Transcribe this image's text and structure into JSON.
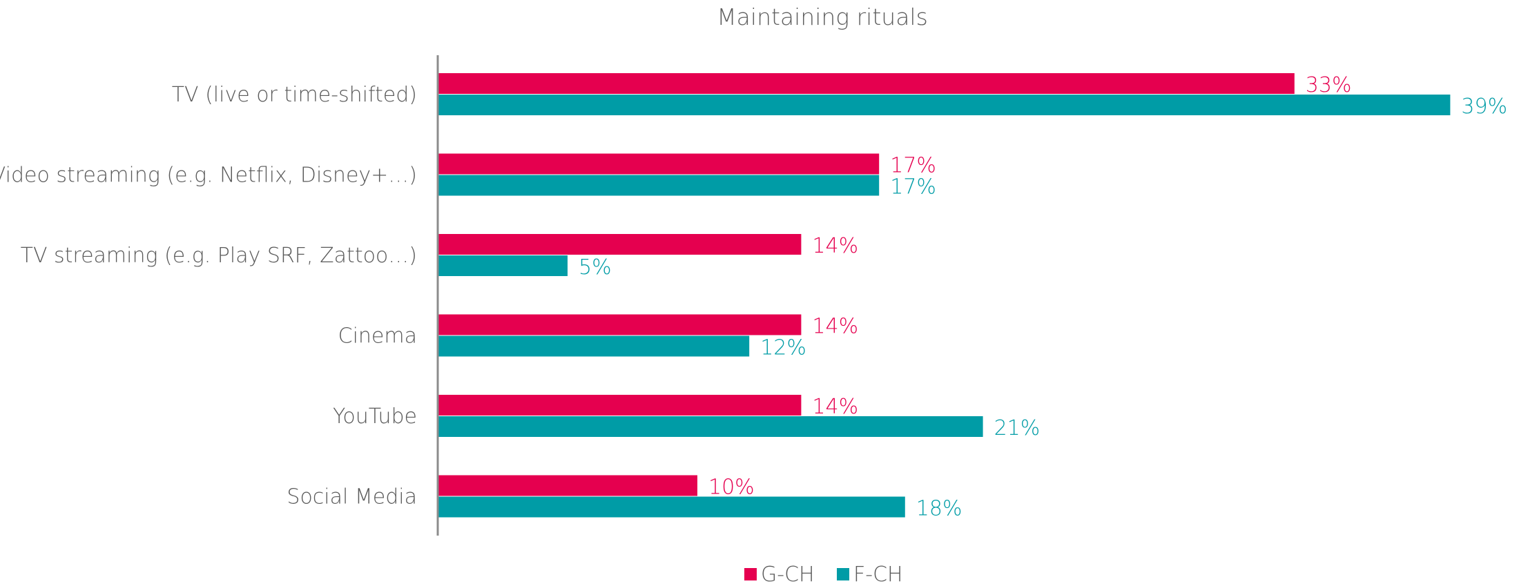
{
  "chart_data": {
    "type": "bar",
    "orientation": "horizontal",
    "title": "Maintaining rituals",
    "xlabel": "",
    "ylabel": "",
    "xlim": [
      0,
      40
    ],
    "value_suffix": "%",
    "grid": false,
    "legend_position": "bottom",
    "categories": [
      "TV (live or time-shifted)",
      "Video streaming (e.g. Netflix, Disney+…)",
      "TV streaming (e.g. Play SRF, Zattoo…)",
      "Cinema",
      "YouTube",
      "Social Media"
    ],
    "series": [
      {
        "name": "G-CH",
        "color": "#e5004f",
        "values": [
          33,
          17,
          14,
          14,
          14,
          10
        ]
      },
      {
        "name": "F-CH",
        "color": "#009ca6",
        "values": [
          39,
          17,
          5,
          12,
          21,
          18
        ]
      }
    ]
  }
}
